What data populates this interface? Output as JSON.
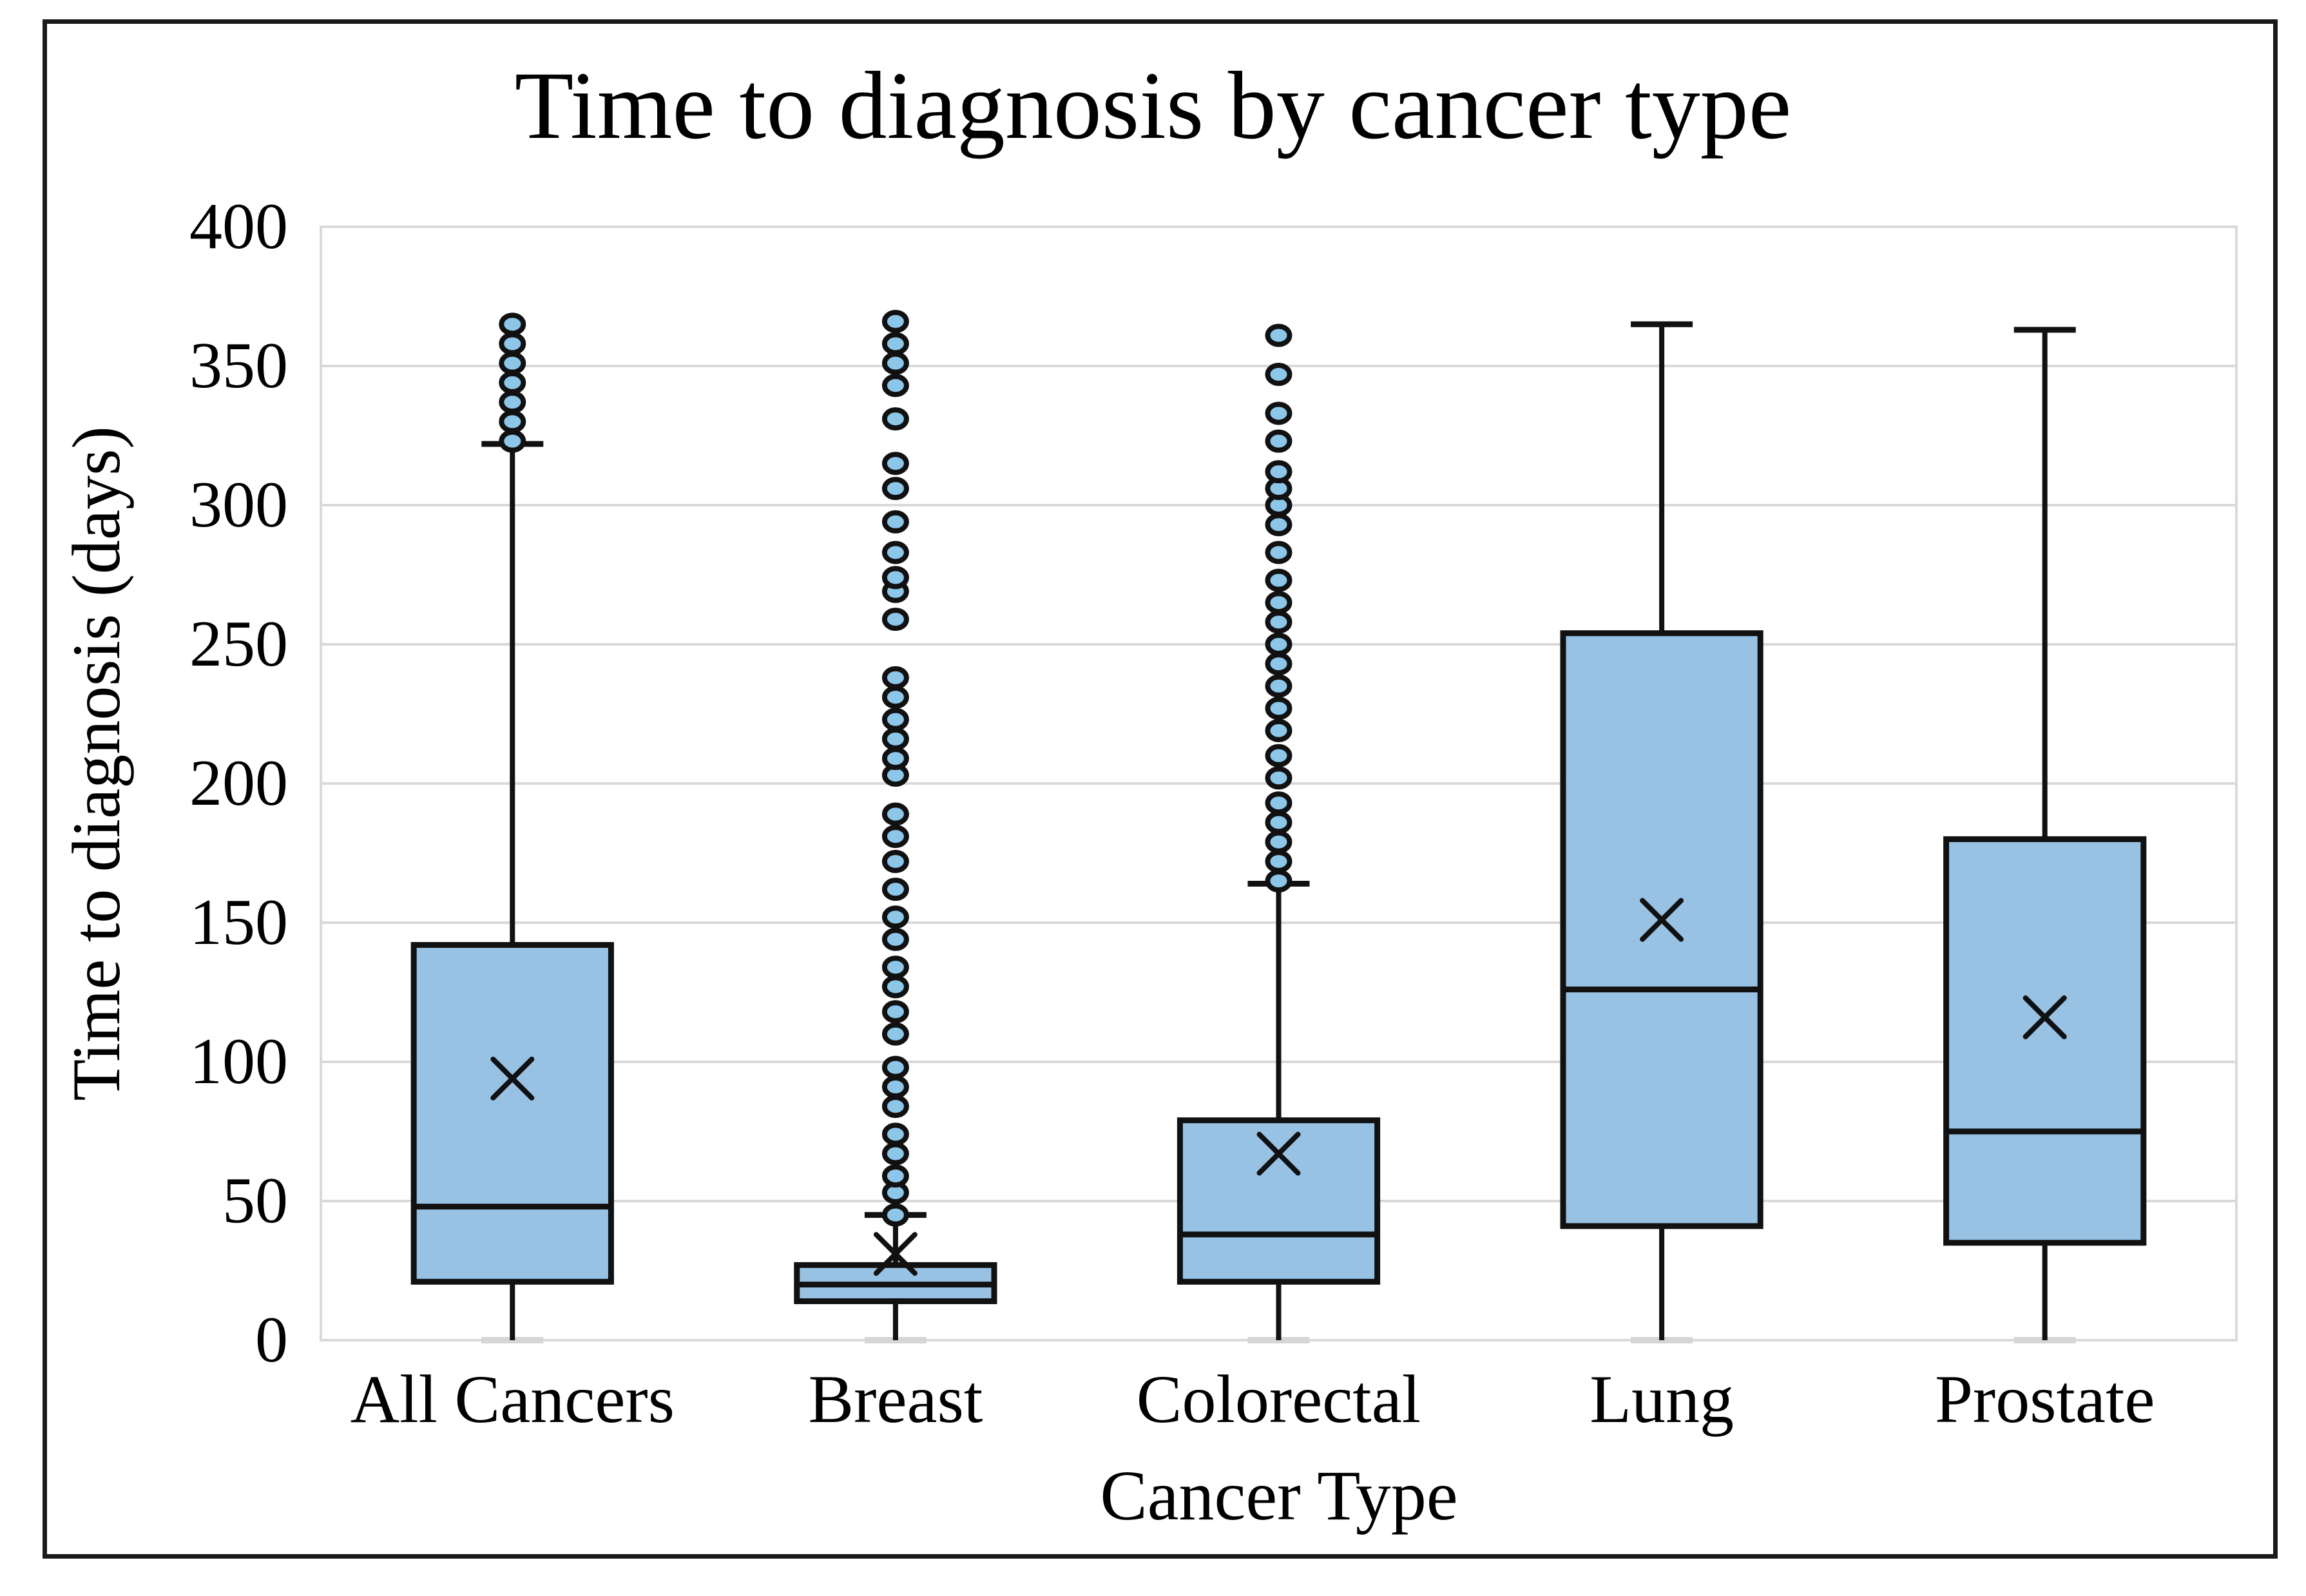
{
  "figure": {
    "background": "#ffffff",
    "frame_color": "#1a1a1a"
  },
  "chart_data": {
    "type": "box",
    "title": "Time to diagnosis by cancer type",
    "xlabel": "Cancer Type",
    "ylabel": "Time to diagnosis (days)",
    "ylim": [
      0,
      400
    ],
    "ytick_step": 50,
    "yticks": [
      "400",
      "350",
      "300",
      "250",
      "200",
      "150",
      "100",
      "50",
      "0"
    ],
    "grid": "horizontal gridlines every 50, light grey",
    "legend": "none",
    "categories": [
      "All Cancers",
      "Breast",
      "Colorectal",
      "Lung",
      "Prostate"
    ],
    "series": [
      {
        "name": "All Cancers",
        "whisker_low": 0,
        "q1": 21,
        "median": 48,
        "q3": 142,
        "whisker_high": 322,
        "mean": 94,
        "outliers": [
          323,
          330,
          337,
          344,
          351,
          358,
          365
        ]
      },
      {
        "name": "Breast",
        "whisker_low": 0,
        "q1": 14,
        "median": 20,
        "q3": 27,
        "whisker_high": 45,
        "mean": 31,
        "outliers": [
          45,
          53,
          59,
          67,
          74,
          84,
          91,
          98,
          110,
          118,
          127,
          134,
          144,
          152,
          162,
          172,
          181,
          189,
          203,
          209,
          216,
          223,
          231,
          238,
          259,
          269,
          274,
          283,
          294,
          306,
          315,
          331,
          343,
          351,
          358,
          366
        ]
      },
      {
        "name": "Colorectal",
        "whisker_low": 0,
        "q1": 21,
        "median": 38,
        "q3": 79,
        "whisker_high": 164,
        "mean": 67,
        "outliers": [
          165,
          172,
          179,
          186,
          193,
          202,
          210,
          219,
          227,
          235,
          243,
          250,
          258,
          265,
          273,
          283,
          293,
          300,
          306,
          312,
          323,
          333,
          347,
          361
        ]
      },
      {
        "name": "Lung",
        "whisker_low": 0,
        "q1": 41,
        "median": 126,
        "q3": 254,
        "whisker_high": 365,
        "mean": 151,
        "outliers": []
      },
      {
        "name": "Prostate",
        "whisker_low": 0,
        "q1": 35,
        "median": 75,
        "q3": 180,
        "whisker_high": 363,
        "mean": 116,
        "outliers": []
      }
    ],
    "colors": {
      "box_fill": "#98C2E4",
      "outlier_fill": "#8CC7EA",
      "line": "#111111",
      "gridline": "#d9d9d9",
      "lower_cap": "#d6d6d6"
    }
  }
}
